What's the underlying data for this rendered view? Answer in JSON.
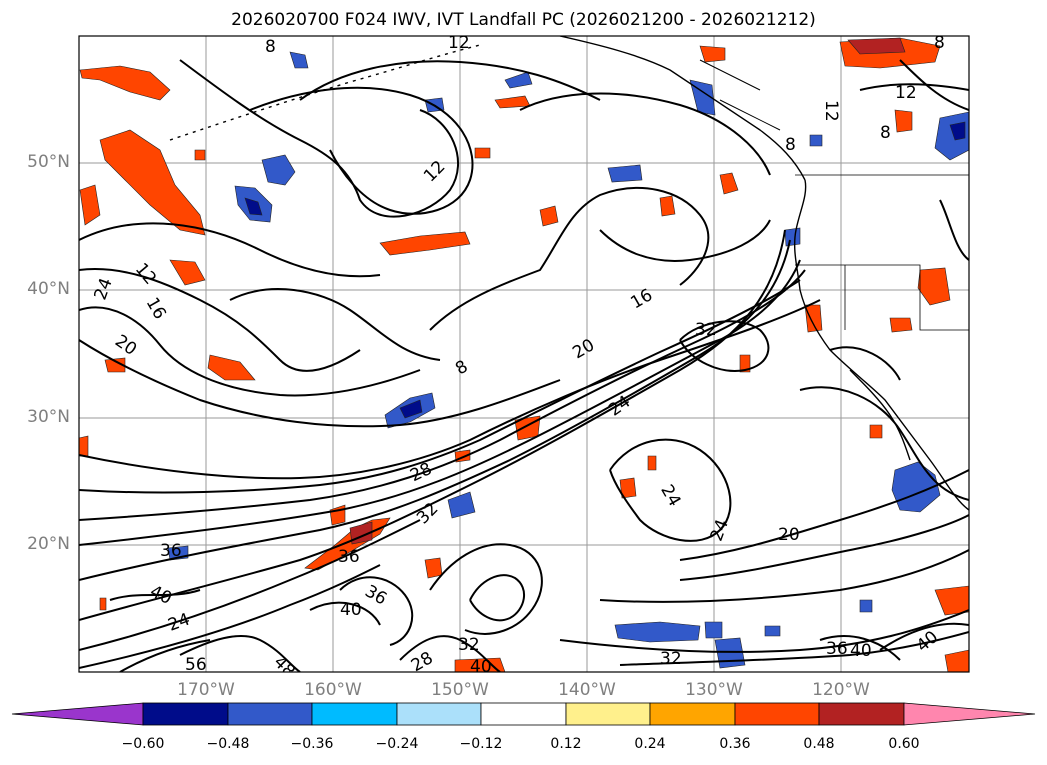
{
  "title": "2026020700 F024 IWV, IVT Landfall PC (2026021200 - 2026021212)",
  "map": {
    "lat_labels": [
      "50°N",
      "40°N",
      "30°N",
      "20°N"
    ],
    "lon_labels": [
      "170°W",
      "160°W",
      "150°W",
      "140°W",
      "130°W",
      "120°W"
    ],
    "contour_labels": [
      "8",
      "12",
      "8",
      "12",
      "8",
      "12",
      "8",
      "24",
      "12",
      "16",
      "20",
      "12",
      "16",
      "32",
      "20",
      "8",
      "24",
      "28",
      "32",
      "36",
      "40",
      "36",
      "24",
      "36",
      "40",
      "56",
      "48",
      "32",
      "28",
      "40",
      "24",
      "24",
      "20",
      "32",
      "36",
      "40",
      "40"
    ]
  },
  "colorbar": {
    "colors": [
      "#9a35cc",
      "#000c8a",
      "#3259c9",
      "#00bbff",
      "#abe0fa",
      "#ffffff",
      "#fff08c",
      "#ffa500",
      "#ff4500",
      "#b22222",
      "#ff86ae"
    ],
    "ticks": [
      "−0.60",
      "−0.48",
      "−0.36",
      "−0.24",
      "−0.12",
      "0.12",
      "0.24",
      "0.36",
      "0.48",
      "0.60"
    ]
  }
}
